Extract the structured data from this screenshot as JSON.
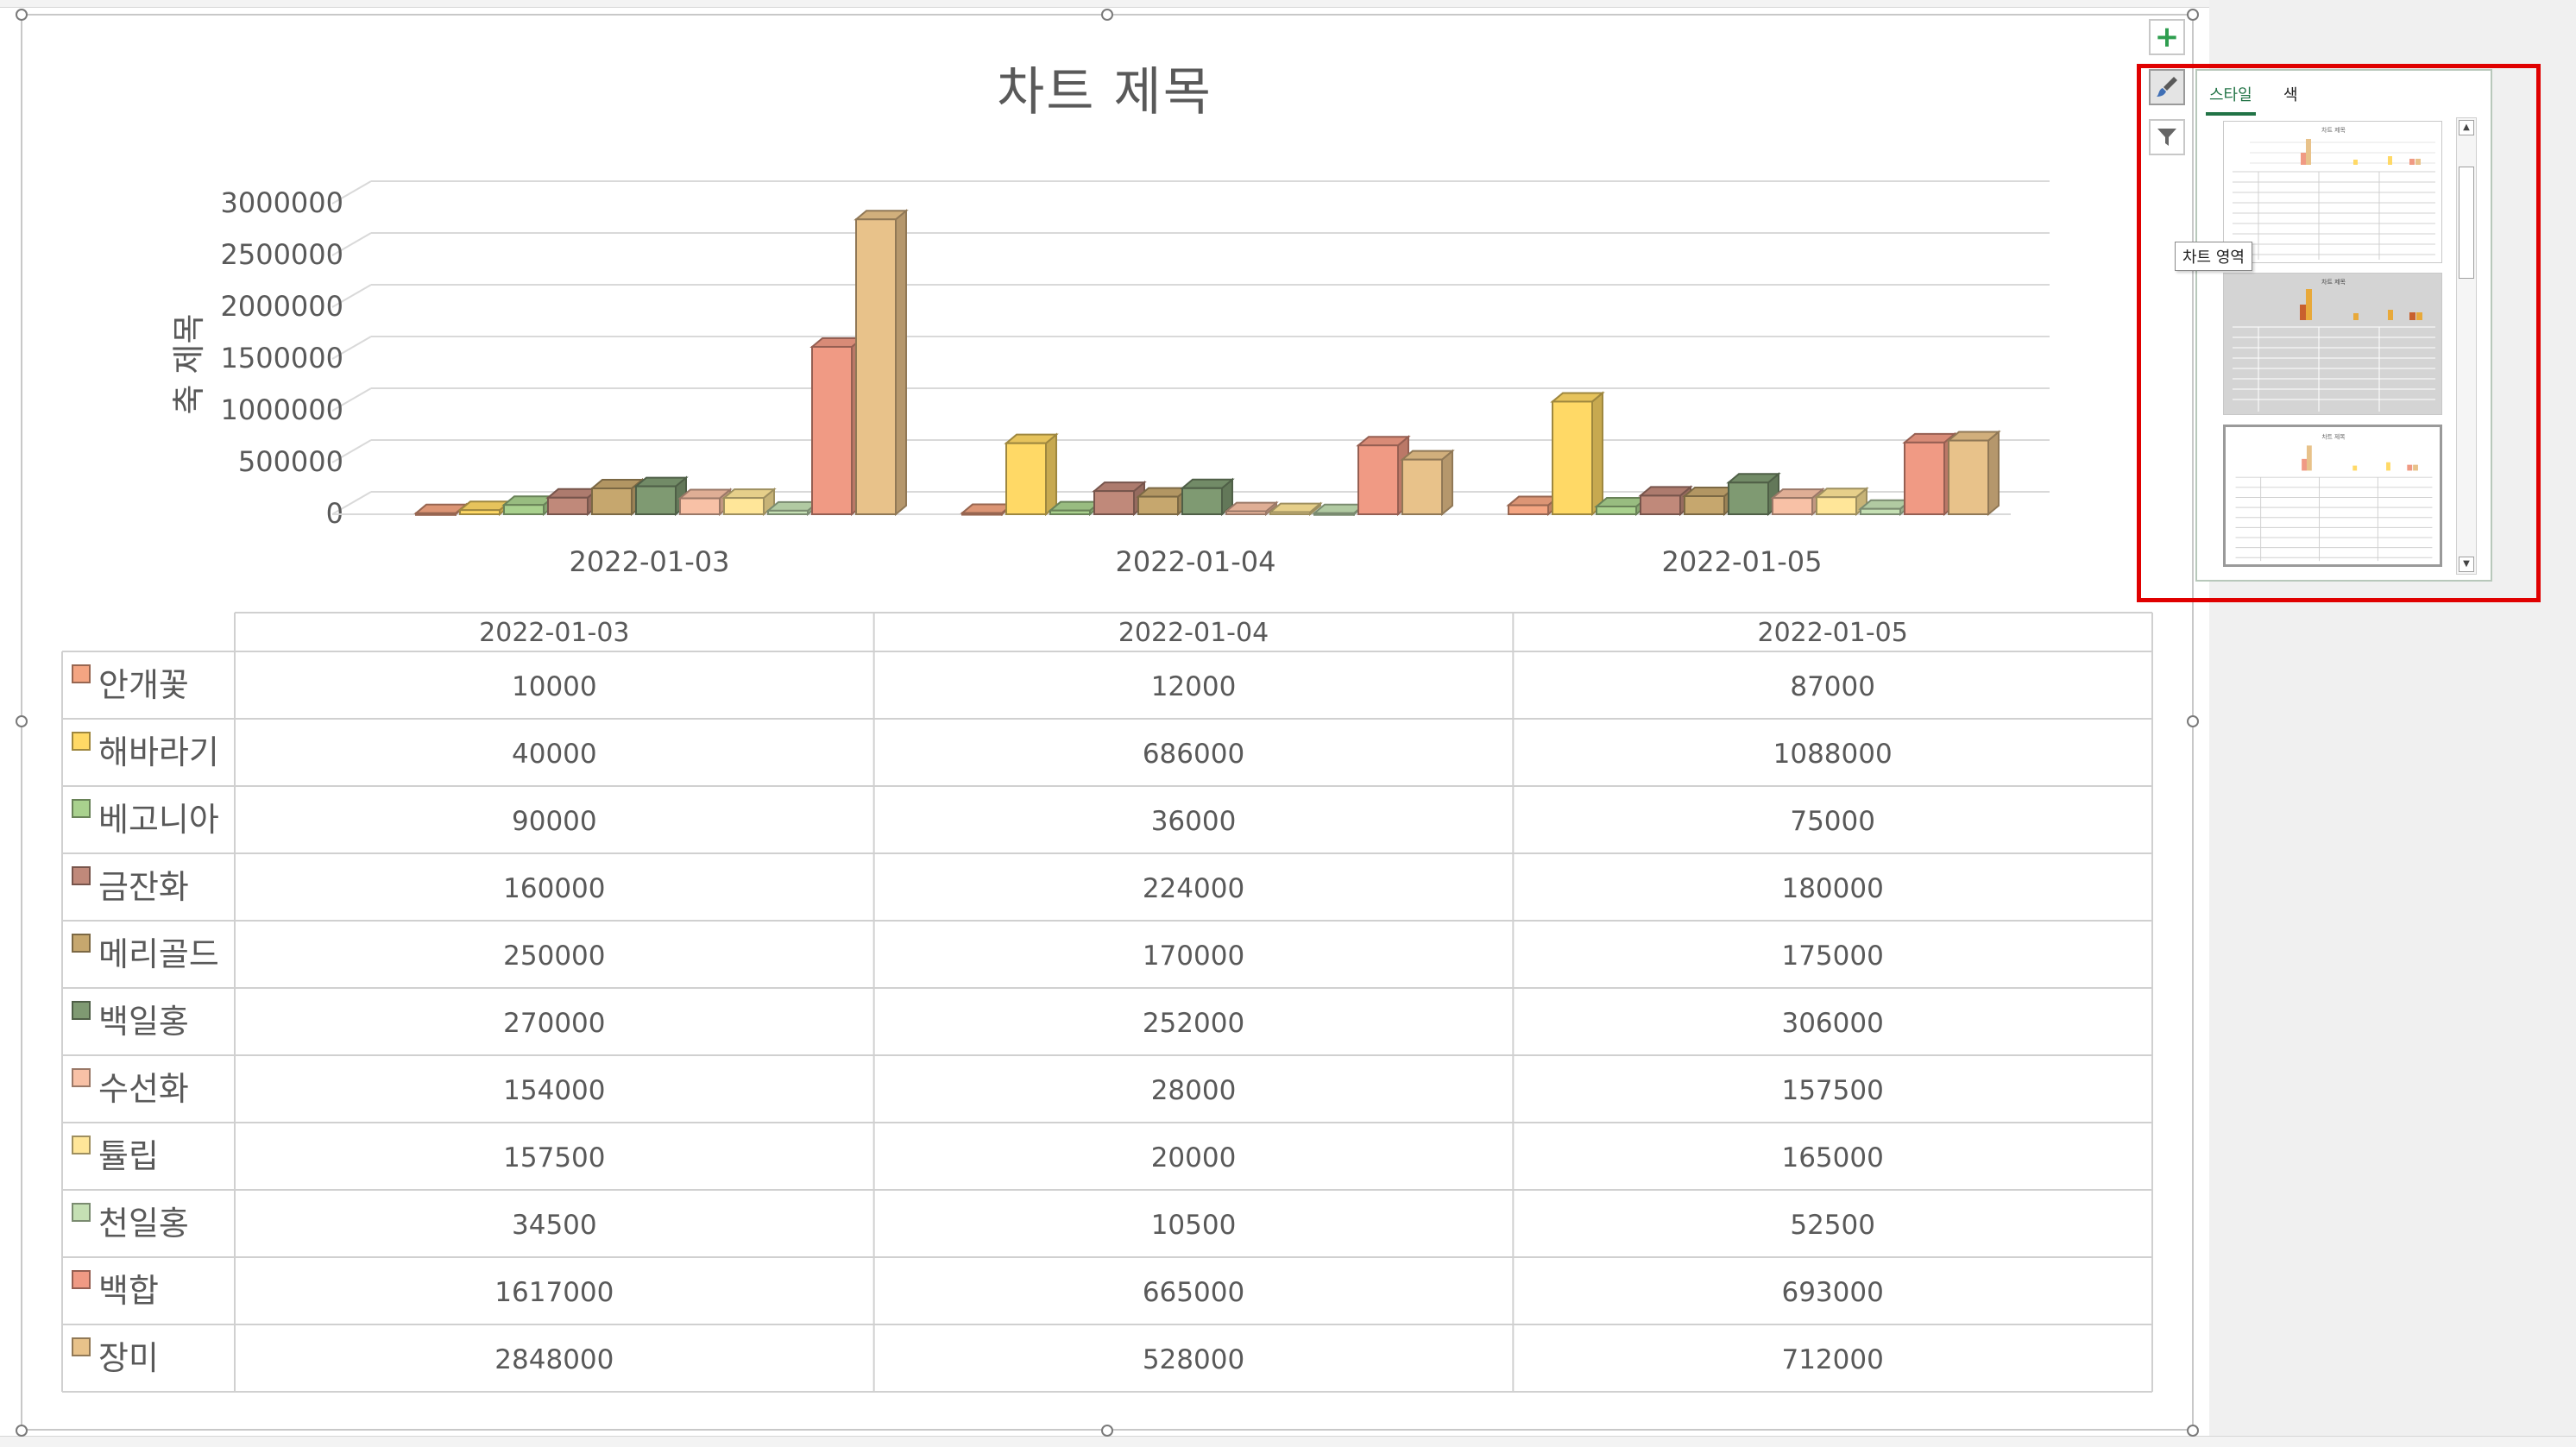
{
  "chart_data": {
    "type": "bar",
    "title": "차트 제목",
    "xlabel": "",
    "ylabel": "축 제목",
    "ylim": [
      0,
      3000000
    ],
    "yticks": [
      0,
      500000,
      1000000,
      1500000,
      2000000,
      2500000,
      3000000
    ],
    "ytick_labels": [
      "0",
      "500000",
      "1000000",
      "1500000",
      "2000000",
      "2500000",
      "3000000"
    ],
    "grid": true,
    "legend": "data-table",
    "categories": [
      "2022-01-03",
      "2022-01-04",
      "2022-01-05"
    ],
    "series": [
      {
        "name": "안개꽃",
        "color": "#f4a582",
        "values": [
          10000,
          12000,
          87000
        ]
      },
      {
        "name": "해바라기",
        "color": "#ffd966",
        "values": [
          40000,
          686000,
          1088000
        ]
      },
      {
        "name": "베고니아",
        "color": "#a9d18e",
        "values": [
          90000,
          36000,
          75000
        ]
      },
      {
        "name": "금잔화",
        "color": "#c0897a",
        "values": [
          160000,
          224000,
          180000
        ]
      },
      {
        "name": "메리골드",
        "color": "#c6a76e",
        "values": [
          250000,
          170000,
          175000
        ]
      },
      {
        "name": "백일홍",
        "color": "#7f9a72",
        "values": [
          270000,
          252000,
          306000
        ]
      },
      {
        "name": "수선화",
        "color": "#f8c1a6",
        "values": [
          154000,
          28000,
          157500
        ]
      },
      {
        "name": "튤립",
        "color": "#ffe699",
        "values": [
          157500,
          20000,
          165000
        ]
      },
      {
        "name": "천일홍",
        "color": "#c5e0b4",
        "values": [
          34500,
          10500,
          52500
        ]
      },
      {
        "name": "백합",
        "color": "#f09a84",
        "values": [
          1617000,
          665000,
          693000
        ]
      },
      {
        "name": "장미",
        "color": "#e8c28a",
        "values": [
          2848000,
          528000,
          712000
        ]
      }
    ]
  },
  "side_buttons": {
    "add": "chart-elements",
    "style": "chart-styles",
    "filter": "chart-filters"
  },
  "style_panel": {
    "tabs": [
      "스타일",
      "색"
    ],
    "active_tab": "스타일",
    "thumb_title": "차트 제목",
    "tooltip": "차트 영역"
  },
  "colors": {
    "accent": "#217346",
    "highlight_frame": "#e00000"
  }
}
